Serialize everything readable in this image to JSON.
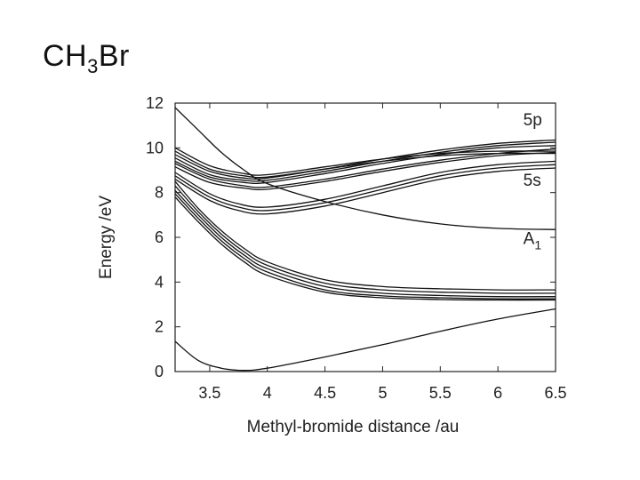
{
  "slide": {
    "title_main": "CH",
    "title_sub": "3",
    "title_end": "Br"
  },
  "chart_data": {
    "type": "line",
    "title": "",
    "xlabel": "Methyl-bromide distance /au",
    "ylabel": "Energy /eV",
    "xlim": [
      3.2,
      6.5
    ],
    "ylim": [
      0,
      12
    ],
    "xticks": [
      3.5,
      4,
      4.5,
      5,
      5.5,
      6,
      6.5
    ],
    "xtick_labels": [
      "3.5",
      "4",
      "4.5",
      "5",
      "5.5",
      "6",
      "6.5"
    ],
    "yticks": [
      0,
      2,
      4,
      6,
      8,
      10,
      12
    ],
    "ytick_labels": [
      "0",
      "2",
      "4",
      "6",
      "8",
      "10",
      "12"
    ],
    "grid": false,
    "line_color": "#111111",
    "annotations": [
      {
        "text": "5p",
        "x": 6.22,
        "y": 11.0
      },
      {
        "text": "5s",
        "x": 6.22,
        "y": 8.3
      },
      {
        "text": "A",
        "sub": "1",
        "x": 6.22,
        "y": 5.7
      }
    ],
    "series": [
      {
        "x": [
          3.2,
          3.4,
          3.6,
          3.8,
          4.0,
          4.5,
          5.0,
          5.5,
          6.0,
          6.5
        ],
        "values": [
          1.35,
          0.5,
          0.15,
          0.05,
          0.15,
          0.65,
          1.2,
          1.8,
          2.35,
          2.8
        ]
      },
      {
        "x": [
          3.2,
          3.4,
          3.6,
          3.8,
          4.0,
          4.5,
          5.0,
          5.5,
          6.0,
          6.5
        ],
        "values": [
          11.8,
          10.8,
          9.8,
          9.0,
          8.4,
          7.6,
          7.0,
          6.6,
          6.4,
          6.35
        ]
      },
      {
        "x": [
          3.2,
          3.4,
          3.6,
          3.8,
          4.0,
          4.5,
          5.0,
          5.5,
          6.0,
          6.5
        ],
        "values": [
          8.5,
          7.3,
          6.3,
          5.5,
          4.9,
          4.1,
          3.8,
          3.7,
          3.65,
          3.65
        ]
      },
      {
        "x": [
          3.2,
          3.4,
          3.6,
          3.8,
          4.0,
          4.5,
          5.0,
          5.5,
          6.0,
          6.5
        ],
        "values": [
          8.3,
          7.15,
          6.15,
          5.35,
          4.75,
          3.95,
          3.65,
          3.55,
          3.5,
          3.5
        ]
      },
      {
        "x": [
          3.2,
          3.4,
          3.6,
          3.8,
          4.0,
          4.5,
          5.0,
          5.5,
          6.0,
          6.5
        ],
        "values": [
          8.1,
          7.0,
          6.0,
          5.2,
          4.6,
          3.8,
          3.5,
          3.4,
          3.35,
          3.35
        ]
      },
      {
        "x": [
          3.2,
          3.4,
          3.6,
          3.8,
          4.0,
          4.5,
          5.0,
          5.5,
          6.0,
          6.5
        ],
        "values": [
          7.95,
          6.85,
          5.85,
          5.05,
          4.45,
          3.65,
          3.38,
          3.3,
          3.25,
          3.25
        ]
      },
      {
        "x": [
          3.2,
          3.4,
          3.6,
          3.8,
          4.0,
          4.5,
          5.0,
          5.5,
          6.0,
          6.5
        ],
        "values": [
          7.8,
          6.7,
          5.7,
          4.9,
          4.3,
          3.55,
          3.3,
          3.22,
          3.2,
          3.2
        ]
      },
      {
        "x": [
          3.2,
          3.5,
          3.75,
          4.0,
          4.5,
          5.0,
          5.5,
          6.0,
          6.5
        ],
        "values": [
          8.6,
          7.65,
          7.2,
          7.05,
          7.4,
          8.0,
          8.6,
          8.95,
          9.1
        ]
      },
      {
        "x": [
          3.2,
          3.5,
          3.75,
          4.0,
          4.5,
          5.0,
          5.5,
          6.0,
          6.5
        ],
        "values": [
          8.75,
          7.8,
          7.35,
          7.2,
          7.55,
          8.15,
          8.75,
          9.1,
          9.25
        ]
      },
      {
        "x": [
          3.2,
          3.5,
          3.75,
          4.0,
          4.5,
          5.0,
          5.5,
          6.0,
          6.5
        ],
        "values": [
          8.9,
          7.95,
          7.5,
          7.35,
          7.7,
          8.3,
          8.9,
          9.25,
          9.4
        ]
      },
      {
        "x": [
          3.2,
          3.5,
          3.8,
          4.0,
          4.5,
          5.0,
          5.5,
          6.0,
          6.5
        ],
        "values": [
          9.4,
          8.7,
          8.45,
          8.45,
          8.85,
          9.3,
          9.7,
          10.0,
          10.1
        ]
      },
      {
        "x": [
          3.2,
          3.5,
          3.8,
          4.0,
          4.5,
          5.0,
          5.5,
          6.0,
          6.5
        ],
        "values": [
          9.55,
          8.8,
          8.55,
          8.55,
          8.95,
          9.4,
          9.8,
          10.1,
          10.25
        ]
      },
      {
        "x": [
          3.2,
          3.5,
          3.8,
          4.0,
          4.5,
          5.0,
          5.5,
          6.0,
          6.5
        ],
        "values": [
          9.7,
          8.95,
          8.65,
          8.65,
          9.05,
          9.5,
          9.9,
          10.2,
          10.35
        ]
      },
      {
        "x": [
          3.2,
          3.5,
          3.8,
          4.0,
          4.5,
          5.0,
          5.5,
          6.0,
          6.5
        ],
        "values": [
          9.3,
          8.6,
          8.3,
          8.25,
          8.6,
          9.05,
          9.45,
          9.75,
          9.95
        ]
      },
      {
        "x": [
          3.2,
          3.5,
          3.8,
          4.0,
          4.5,
          5.0,
          5.5,
          6.0,
          6.5
        ],
        "values": [
          9.15,
          8.45,
          8.2,
          8.15,
          8.5,
          8.95,
          9.35,
          9.65,
          9.8
        ]
      },
      {
        "x": [
          3.2,
          3.5,
          3.8,
          4.0,
          4.5,
          5.0,
          5.5,
          6.0,
          6.5
        ],
        "values": [
          9.85,
          9.05,
          8.75,
          8.7,
          9.05,
          9.4,
          9.65,
          9.75,
          9.75
        ]
      },
      {
        "x": [
          3.2,
          3.5,
          3.8,
          4.0,
          4.5,
          5.0,
          5.5,
          6.0,
          6.5
        ],
        "values": [
          10.0,
          9.2,
          8.85,
          8.8,
          9.15,
          9.5,
          9.75,
          9.85,
          9.85
        ]
      }
    ]
  }
}
